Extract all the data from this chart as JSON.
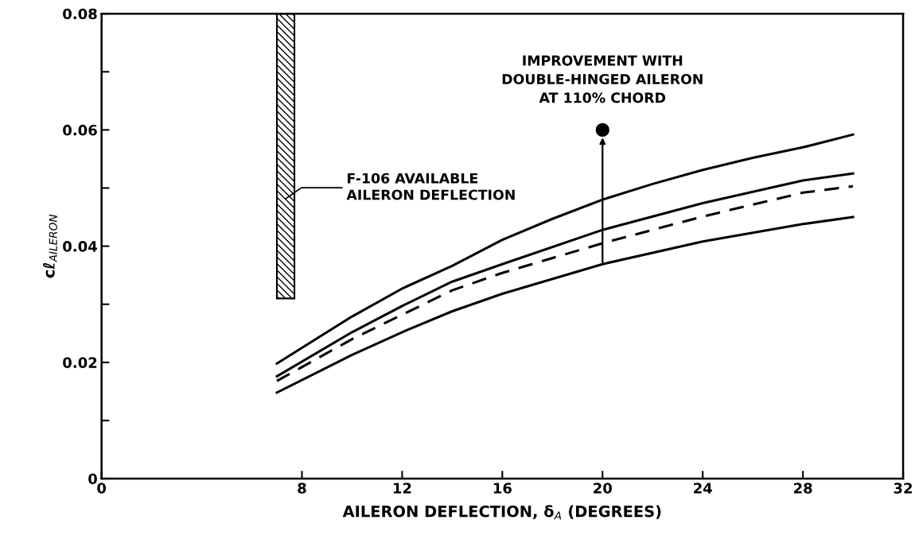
{
  "chart_data": {
    "type": "line",
    "xlabel": "AILERON DEFLECTION, δ$_{A}$ (DEGREES)",
    "ylabel": "cℓ$_{AILERON}$",
    "xlim": [
      0,
      32
    ],
    "xticks": [
      0,
      8,
      12,
      16,
      20,
      24,
      28,
      32
    ],
    "ylim": [
      0,
      0.08
    ],
    "yticks": [
      0,
      {
        "value": 0.01,
        "label": null
      },
      0.02,
      {
        "value": 0.03,
        "label": null
      },
      0.04,
      {
        "value": 0.05,
        "label": null
      },
      0.06,
      {
        "value": 0.07,
        "label": null
      },
      0.08
    ],
    "grid": false,
    "legend": false,
    "marker": "none",
    "series": [
      {
        "type": "bar",
        "color": "#000000",
        "x": [
          7.35
        ],
        "values": [
          0.049
        ],
        "base": [
          0.031
        ]
      },
      {
        "color": "#000000",
        "line_style": "solid",
        "x": [
          7,
          10,
          12,
          14,
          16,
          18,
          20,
          22,
          24,
          26,
          28,
          30
        ],
        "values": [
          0.0198,
          0.0279,
          0.0327,
          0.0366,
          0.0411,
          0.0447,
          0.048,
          0.0507,
          0.0531,
          0.0552,
          0.057,
          0.0592
        ]
      },
      {
        "color": "#000000",
        "line_style": "solid",
        "x": [
          7,
          10,
          12,
          14,
          16,
          20,
          24,
          28,
          30
        ],
        "values": [
          0.0176,
          0.0252,
          0.0297,
          0.0339,
          0.0369,
          0.0428,
          0.0474,
          0.0513,
          0.0525
        ]
      },
      {
        "color": "#000000",
        "line_style": "dashed",
        "x": [
          7,
          10,
          12,
          14,
          16,
          20,
          24,
          28,
          30
        ],
        "values": [
          0.0168,
          0.024,
          0.0282,
          0.0324,
          0.0354,
          0.0405,
          0.0451,
          0.0492,
          0.0503
        ]
      },
      {
        "color": "#000000",
        "line_style": "solid",
        "x": [
          7,
          10,
          12,
          14,
          16,
          20,
          24,
          28,
          30
        ],
        "values": [
          0.0148,
          0.0213,
          0.0252,
          0.0288,
          0.0318,
          0.0369,
          0.0408,
          0.0438,
          0.045
        ]
      },
      {
        "type": "scatter",
        "color": "#000000",
        "marker": "circle",
        "x": [
          20
        ],
        "values": [
          0.06
        ]
      }
    ],
    "annotations": [
      {
        "text": "IMPROVEMENT WITH\nDOUBLE-HINGED AILERON\nAT 110% CHORD",
        "x": 20,
        "y": 0.06
      },
      "F-106 AVAILABLE\nAILERON DEFLECTION"
    ]
  }
}
